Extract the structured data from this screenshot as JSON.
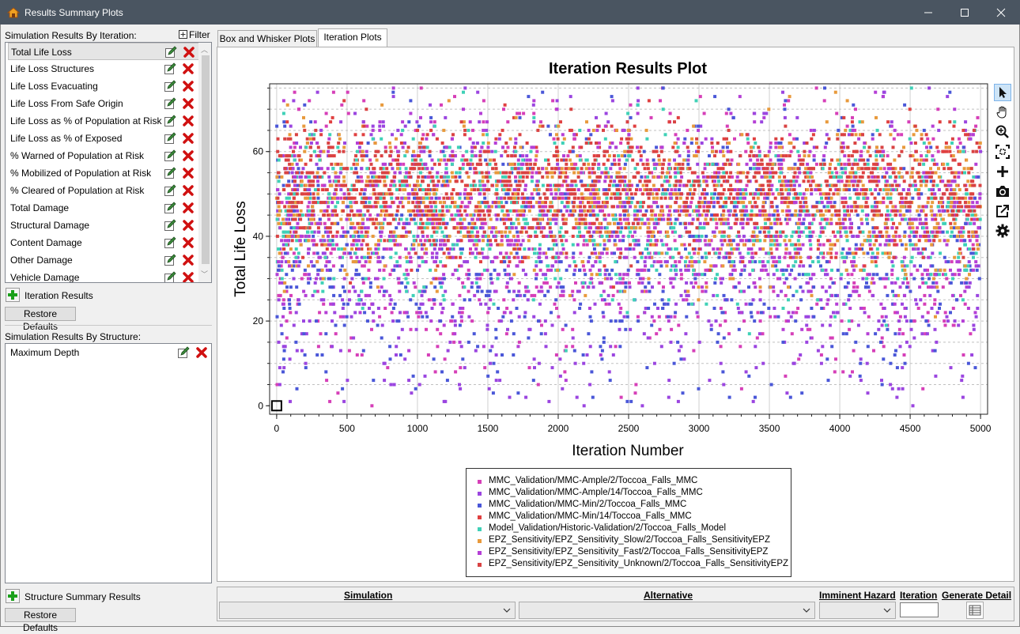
{
  "window": {
    "title": "Results Summary Plots",
    "minimize_glyph": "─",
    "close_glyph": "✕"
  },
  "left": {
    "iteration_section_label": "Simulation Results By Iteration:",
    "filter_label": "Filter",
    "iteration_items": [
      {
        "label": "Total Life Loss",
        "selected": true
      },
      {
        "label": "Life Loss Structures"
      },
      {
        "label": "Life Loss Evacuating"
      },
      {
        "label": "Life Loss From Safe Origin"
      },
      {
        "label": "Life Loss as % of Population at Risk"
      },
      {
        "label": "Life Loss as % of Exposed"
      },
      {
        "label": "% Warned of Population at Risk"
      },
      {
        "label": "% Mobilized of Population at Risk"
      },
      {
        "label": "% Cleared of Population at Risk"
      },
      {
        "label": "Total Damage"
      },
      {
        "label": "Structural Damage"
      },
      {
        "label": "Content Damage"
      },
      {
        "label": "Other Damage"
      },
      {
        "label": "Vehicle Damage"
      }
    ],
    "iteration_add_label": "Iteration Results",
    "restore_defaults_1": "Restore Defaults",
    "structure_section_label": "Simulation Results By Structure:",
    "structure_items": [
      {
        "label": "Maximum Depth"
      }
    ],
    "structure_add_label": "Structure Summary Results",
    "restore_defaults_2": "Restore Defaults"
  },
  "tabs": [
    {
      "label": "Box and Whisker Plots",
      "active": false
    },
    {
      "label": "Iteration Plots",
      "active": true
    }
  ],
  "toolbar_icons": [
    "pointer-icon",
    "pan-hand-icon",
    "zoom-in-icon",
    "zoom-to-fit-icon",
    "add-crosshair-icon",
    "camera-icon",
    "export-icon",
    "settings-gear-icon"
  ],
  "bottom": {
    "simulation_label": "Simulation",
    "alternative_label": "Alternative",
    "imminent_hazard_label": "Imminent Hazard",
    "iteration_label": "Iteration",
    "generate_detail_label": "Generate Detail",
    "iteration_value": ""
  },
  "chart_data": {
    "type": "scatter",
    "title": "Iteration Results Plot",
    "xlabel": "Iteration Number",
    "ylabel": "Total Life Loss",
    "xlim": [
      -50,
      5050
    ],
    "ylim": [
      -2,
      76
    ],
    "x_ticks": [
      0,
      500,
      1000,
      1500,
      2000,
      2500,
      3000,
      3500,
      4000,
      4500,
      5000
    ],
    "y_ticks": [
      0,
      20,
      40,
      60
    ],
    "x_tick_labels": [
      "0",
      "500",
      "1000",
      "1500",
      "2000",
      "2500",
      "3000",
      "3500",
      "4000",
      "4500",
      "5000"
    ],
    "y_tick_labels": [
      "0",
      "20",
      "40",
      "60"
    ],
    "grid": true,
    "legend_position": "bottom-center",
    "highlight_marker": {
      "x": 0,
      "y": 0
    },
    "series": [
      {
        "name": "MMC_Validation/MMC-Ample/2/Toccoa_Falls_MMC",
        "color": "#d63fb8",
        "n_points": 5000,
        "center": 40,
        "spread": 16,
        "x_range": [
          0,
          5000
        ]
      },
      {
        "name": "MMC_Validation/MMC-Ample/14/Toccoa_Falls_MMC",
        "color": "#9b45e0",
        "n_points": 5000,
        "center": 36,
        "spread": 17,
        "x_range": [
          0,
          5000
        ]
      },
      {
        "name": "MMC_Validation/MMC-Min/2/Toccoa_Falls_MMC",
        "color": "#4a57d8",
        "n_points": 5000,
        "center": 38,
        "spread": 16,
        "x_range": [
          0,
          5000
        ]
      },
      {
        "name": "MMC_Validation/MMC-Min/14/Toccoa_Falls_MMC",
        "color": "#e04040",
        "n_points": 5000,
        "center": 50,
        "spread": 8,
        "x_range": [
          0,
          5000
        ]
      },
      {
        "name": "Model_Validation/Historic-Validation/2/Toccoa_Falls_Model",
        "color": "#3fd1b7",
        "n_points": 5000,
        "center": 45,
        "spread": 10,
        "x_range": [
          0,
          5000
        ]
      },
      {
        "name": "EPZ_Sensitivity/EPZ_Sensitivity_Slow/2/Toccoa_Falls_SensitivityEPZ",
        "color": "#e89a3c",
        "n_points": 5000,
        "center": 48,
        "spread": 9,
        "x_range": [
          0,
          5000
        ]
      },
      {
        "name": "EPZ_Sensitivity/EPZ_Sensitivity_Fast/2/Toccoa_Falls_SensitivityEPZ",
        "color": "#b53fd6",
        "n_points": 5000,
        "center": 44,
        "spread": 12,
        "x_range": [
          0,
          5000
        ]
      },
      {
        "name": "EPZ_Sensitivity/EPZ_Sensitivity_Unknown/2/Toccoa_Falls_SensitivityEPZ",
        "color": "#d94343",
        "n_points": 5000,
        "center": 51,
        "spread": 7,
        "x_range": [
          0,
          5000
        ]
      }
    ]
  }
}
